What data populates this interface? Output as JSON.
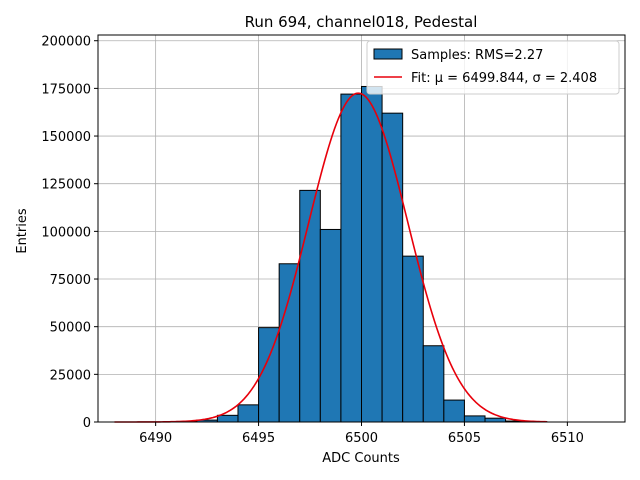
{
  "chart_data": {
    "type": "bar",
    "title": "Run 694, channel018, Pedestal",
    "xlabel": "ADC Counts",
    "ylabel": "Entries",
    "xlim": [
      6487.2,
      6512.8
    ],
    "ylim": [
      0,
      203000
    ],
    "grid": true,
    "legend_position": "top-right",
    "x_ticks": [
      6490,
      6495,
      6500,
      6505,
      6510
    ],
    "y_ticks": [
      0,
      25000,
      50000,
      75000,
      100000,
      125000,
      150000,
      175000,
      200000
    ],
    "bin_width": 1,
    "bins": [
      6487,
      6488,
      6489,
      6490,
      6491,
      6492,
      6493,
      6494,
      6495,
      6496,
      6497,
      6498,
      6499,
      6500,
      6501,
      6502,
      6503,
      6504,
      6505,
      6506,
      6507,
      6508,
      6509,
      6510
    ],
    "values": [
      0,
      0,
      0,
      0,
      300,
      1000,
      3500,
      9000,
      49500,
      83000,
      121500,
      101000,
      172000,
      176000,
      162000,
      87000,
      40000,
      11500,
      3200,
      2000,
      500,
      200,
      0,
      0
    ],
    "series": [
      {
        "name": "Samples: RMS=2.27",
        "kind": "histogram"
      },
      {
        "name": "Fit: μ = 6499.844, σ = 2.408",
        "kind": "gaussian-fit",
        "mu": 6499.844,
        "sigma": 2.408,
        "amplitude": 172500,
        "x_range": [
          6488,
          6509
        ]
      }
    ],
    "legend": [
      "Samples: RMS=2.27",
      "Fit: μ = 6499.844, σ = 2.408"
    ],
    "colors": {
      "bars": "#1f77b4",
      "bar_edge": "#000000",
      "fit": "#e8000b"
    }
  }
}
